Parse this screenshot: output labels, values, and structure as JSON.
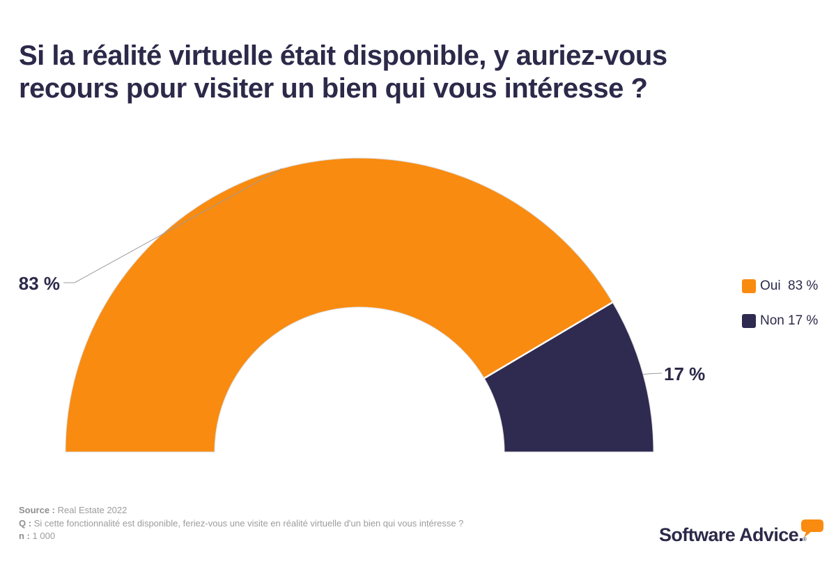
{
  "colors": {
    "orange": "#F98B10",
    "navy": "#2E2A50",
    "text_navy": "#2C2949",
    "footer_gray": "#9C9C9C",
    "footer_gray_bold": "#8F8F8F",
    "leader_gray": "#9B9B9B",
    "slice_outline": "#DCDCDC"
  },
  "header": {
    "title_line1": "Si la réalité virtuelle était disponible, y auriez-vous",
    "title_line2": "recours pour visiter un bien qui vous intéresse ?"
  },
  "chart_data": {
    "type": "pie",
    "variant": "half_donut",
    "title": "Si la réalité virtuelle était disponible, y auriez-vous recours pour visiter un bien qui vous intéresse ?",
    "categories": [
      "Oui",
      "Non"
    ],
    "values": [
      83,
      17
    ],
    "unit": "%",
    "slice_labels": [
      "83 %",
      "17 %"
    ],
    "slice_colors": [
      "#F98B10",
      "#2E2A50"
    ],
    "start_angle_deg": 180,
    "total_sweep_deg": 180,
    "inner_radius_ratio": 0.49,
    "legend_position": "right",
    "legend": [
      {
        "name": "Oui",
        "value": "83 %",
        "color": "#F98B10"
      },
      {
        "name": "Non",
        "value": "17 %",
        "color": "#2E2A50"
      }
    ]
  },
  "footer": {
    "source_label": "Source :",
    "source_value": "Real Estate 2022",
    "q_label": "Q :",
    "q_value": "Si cette fonctionnalité est disponible, feriez-vous une visite en réalité virtuelle d'un bien qui vous intéresse ?",
    "n_label": "n :",
    "n_value": "1 000"
  },
  "branding": {
    "wordmark": "Software Advice.",
    "registered": "®"
  }
}
